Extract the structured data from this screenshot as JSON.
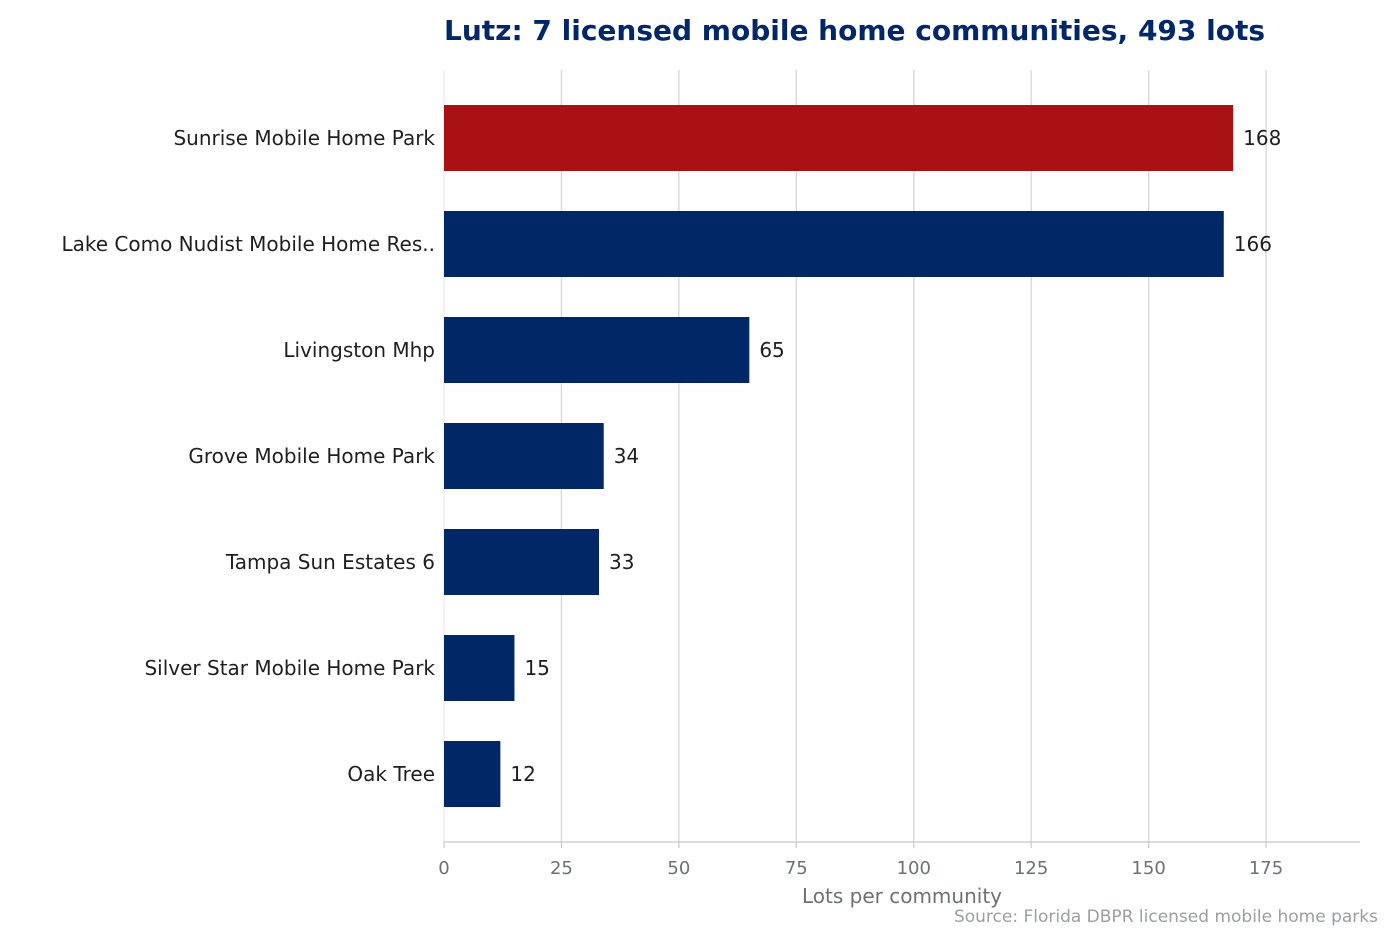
{
  "chart_data": {
    "type": "bar",
    "orientation": "horizontal",
    "title": "Lutz: 7 licensed mobile home communities, 493 lots",
    "xlabel": "Lots per community",
    "ylabel": "",
    "categories": [
      "Sunrise Mobile Home Park",
      "Lake Como Nudist Mobile Home Res..",
      "Livingston Mhp",
      "Grove Mobile Home Park",
      "Tampa Sun Estates 6",
      "Silver Star Mobile Home Park",
      "Oak Tree"
    ],
    "values": [
      168,
      166,
      65,
      34,
      33,
      15,
      12
    ],
    "value_labels": [
      "168",
      "166",
      "65",
      "34",
      "33",
      "15",
      "12"
    ],
    "xlim": [
      0,
      195
    ],
    "xticks": [
      0,
      25,
      50,
      75,
      100,
      125,
      150,
      175
    ],
    "xtick_labels": [
      "0",
      "25",
      "50",
      "75",
      "100",
      "125",
      "150",
      "175"
    ],
    "grid": "vertical",
    "highlight_index": 0,
    "colors": {
      "highlight": "#a91115",
      "bar": "#012766",
      "grid": "#d9d9d9",
      "axis": "#c8c8c8"
    },
    "source": "Source: Florida DBPR licensed mobile home parks"
  }
}
